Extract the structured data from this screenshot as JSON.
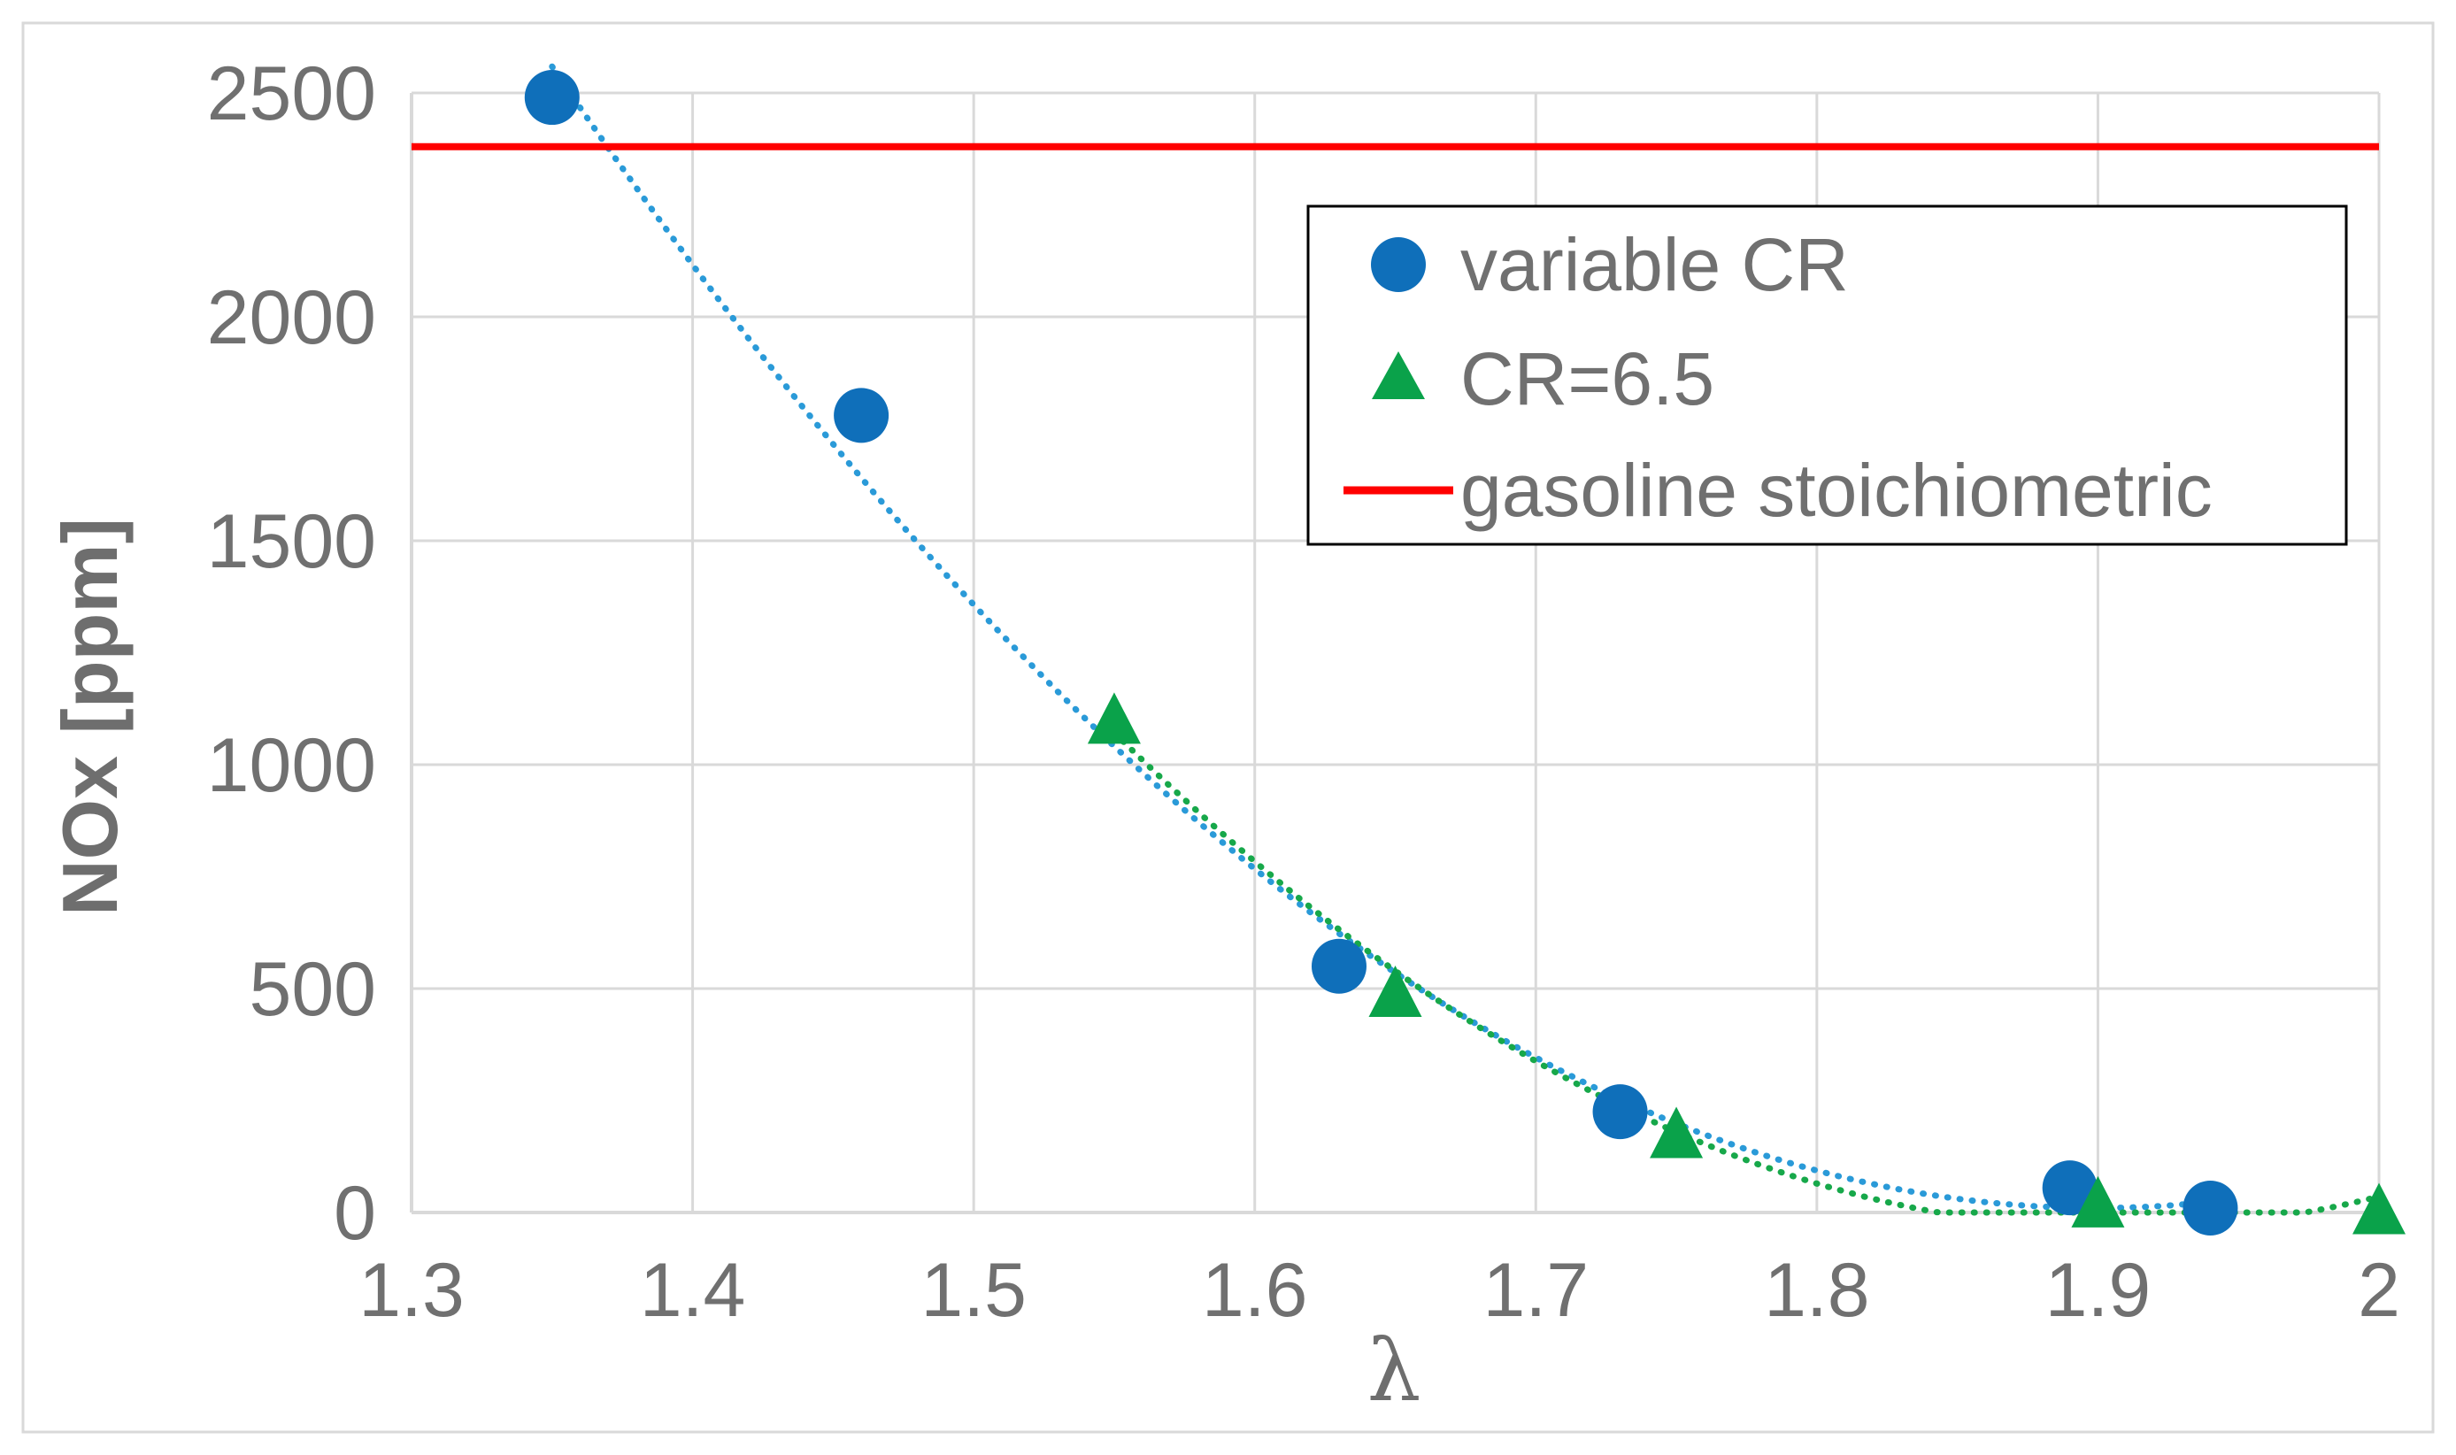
{
  "chart_data": {
    "type": "scatter",
    "xlabel": "λ",
    "ylabel": "NOx [ppm]",
    "xlim": [
      1.3,
      2.0
    ],
    "ylim": [
      0,
      2500
    ],
    "x_ticks": [
      "1.3",
      "1.4",
      "1.5",
      "1.6",
      "1.7",
      "1.8",
      "1.9",
      "2"
    ],
    "y_ticks": [
      "0",
      "500",
      "1000",
      "1500",
      "2000",
      "2500"
    ],
    "grid": true,
    "legend_position": "top-right",
    "series": [
      {
        "name": "variable CR",
        "marker": "circle",
        "color": "#0f6fba",
        "trend_color": "#2a9ad8",
        "trend": "dotted",
        "x": [
          1.35,
          1.46,
          1.63,
          1.73,
          1.89,
          1.94
        ],
        "y": [
          2490,
          1780,
          550,
          225,
          55,
          10
        ]
      },
      {
        "name": "CR=6.5",
        "marker": "triangle",
        "color": "#0aa24a",
        "trend_color": "#17a84a",
        "trend": "dotted",
        "x": [
          1.55,
          1.65,
          1.75,
          1.9,
          2.0
        ],
        "y": [
          1100,
          490,
          175,
          20,
          5
        ]
      },
      {
        "name": "gasoline stoichiometric",
        "marker": "line",
        "color": "#ff0000",
        "y_constant": 2380
      }
    ]
  }
}
